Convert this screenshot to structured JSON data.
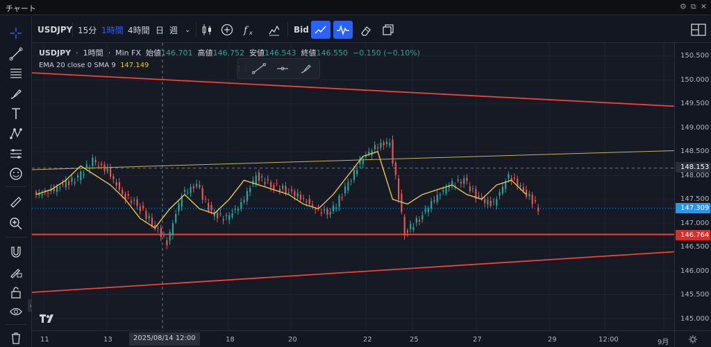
{
  "window": {
    "title": "チャート"
  },
  "toolbar": {
    "symbol": "USDJPY",
    "intervals": [
      "15分",
      "1時間",
      "4時間",
      "日",
      "週"
    ],
    "active_interval": "1時間",
    "price_type": "Bid"
  },
  "legend": {
    "symbol": "USDJPY",
    "interval": "1時間",
    "source": "Min FX",
    "open_label": "始値",
    "open": "146.701",
    "high_label": "高値",
    "high": "146.752",
    "low_label": "安値",
    "low": "146.543",
    "close_label": "終値",
    "close": "146.550",
    "change": "−0.150 (−0.10%)"
  },
  "indicator": {
    "label": "EMA 20 close 0 SMA 9",
    "value": "147.149"
  },
  "price_axis": {
    "labels": [
      "150.500",
      "150.000",
      "149.500",
      "149.000",
      "148.500",
      "148.000",
      "147.500",
      "147.000",
      "146.500",
      "146.000",
      "145.500",
      "145.000"
    ],
    "tags": {
      "crosshair": "148.153",
      "last_price": "147.309",
      "horizontal_line": "146.764"
    }
  },
  "time_axis": {
    "labels": [
      "11",
      "13",
      "18",
      "20",
      "22",
      "25",
      "27",
      "29",
      "12:00",
      "9月"
    ],
    "crosshair_label": "2025/08/14   12:00"
  },
  "colors": {
    "up": "#26a69a",
    "down": "#ef5350",
    "ema": "#e6c84a",
    "trendline": "#f44336",
    "blue_tag": "#2196f3"
  },
  "icons": {
    "left_tools": [
      "crosshair-icon",
      "trendline-icon",
      "fib-icon",
      "brush-icon",
      "text-icon",
      "pattern-icon",
      "forecast-icon",
      "emoji-icon",
      "ruler-icon",
      "zoom-icon",
      "magnet-icon",
      "lock-drawing-icon",
      "lock-icon",
      "eye-icon",
      "trash-icon"
    ]
  },
  "chart_data": {
    "type": "candlestick",
    "title": "",
    "symbol": "USDJPY",
    "interval": "1時間",
    "ylim": [
      144.9,
      150.7
    ],
    "horizontal_lines": [
      146.764
    ],
    "trendlines": [
      {
        "name": "upper channel",
        "from": [
          0,
          150.15
        ],
        "to": [
          1,
          149.45
        ]
      },
      {
        "name": "lower channel",
        "from": [
          0,
          145.55
        ],
        "to": [
          1,
          146.4
        ]
      },
      {
        "name": "resistance",
        "from": [
          0,
          148.12
        ],
        "to": [
          1,
          148.52
        ]
      }
    ],
    "series": [
      {
        "name": "EMA 20",
        "values": [
          147.6,
          147.7,
          147.9,
          148.2,
          148.0,
          147.8,
          147.5,
          147.1,
          146.9,
          147.3,
          147.6,
          147.3,
          147.2,
          147.5,
          147.9,
          147.8,
          147.7,
          147.6,
          147.4,
          147.3,
          147.6,
          148.0,
          148.4,
          148.5,
          147.5,
          147.4,
          147.6,
          147.7,
          147.8,
          147.6,
          147.5,
          147.8,
          147.9,
          147.6
        ]
      }
    ],
    "closes": [
      147.65,
      147.8,
      147.95,
      148.3,
      148.1,
      147.6,
      147.4,
      147.0,
      146.6,
      147.6,
      147.8,
      147.2,
      147.1,
      147.4,
      148.0,
      147.8,
      147.7,
      147.55,
      147.3,
      147.2,
      147.7,
      148.3,
      148.6,
      148.7,
      146.8,
      147.1,
      147.5,
      147.8,
      147.9,
      147.5,
      147.4,
      148.0,
      147.7,
      147.31
    ]
  }
}
